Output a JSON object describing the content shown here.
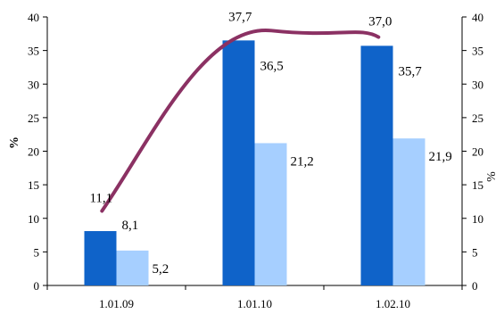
{
  "chart_data": {
    "type": "bar",
    "categories": [
      "1.01.09",
      "1.01.10",
      "1.02.10"
    ],
    "series": [
      {
        "values": [
          8.1,
          36.5,
          35.7
        ],
        "color": "#0F63C9",
        "labels": [
          "8,1",
          "36,5",
          "35,7"
        ]
      },
      {
        "values": [
          5.2,
          21.2,
          21.9
        ],
        "color": "#A6CFFF",
        "labels": [
          "5,2",
          "21,2",
          "21,9"
        ]
      },
      {
        "type": "line",
        "axis": "right",
        "values": [
          11.1,
          37.7,
          37.0
        ],
        "color": "#8B3163",
        "labels": [
          "11,1",
          "37,7",
          "37,0"
        ]
      }
    ],
    "ylabel": "%",
    "y2label": "%",
    "ylim": [
      0,
      40
    ],
    "y2lim": [
      0,
      40
    ],
    "yticks": [
      "0",
      "5",
      "10",
      "15",
      "20",
      "25",
      "30",
      "35",
      "40"
    ],
    "y2ticks": [
      "0",
      "5",
      "10",
      "15",
      "20",
      "25",
      "30",
      "35",
      "40"
    ],
    "grid": false,
    "legend": "none"
  }
}
